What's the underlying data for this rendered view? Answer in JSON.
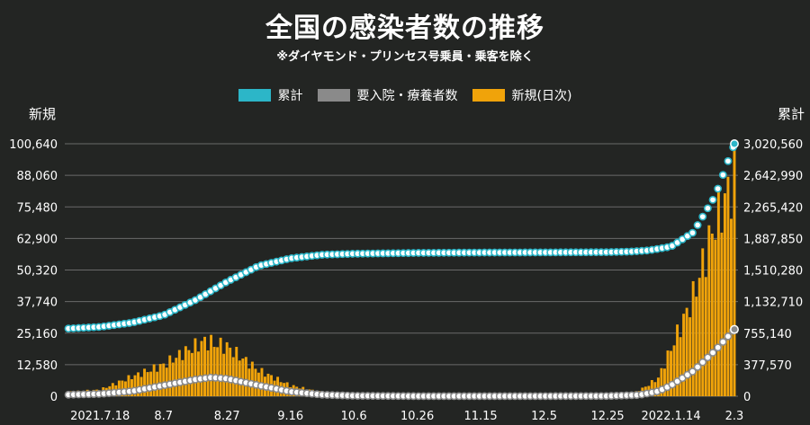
{
  "title": "全国の感染者数の推移",
  "subtitle": "※ダイヤモンド・プリンセス号乗員・乗客を除く",
  "colors": {
    "background": "#232523",
    "cumulative": "#2cb6c8",
    "recuperating": "#8a8a8a",
    "new": "#f0a30a",
    "grid": "#6a6a6a"
  },
  "chart_data": {
    "type": "bar",
    "x_labels": [
      "2021.7.18",
      "8.7",
      "8.27",
      "9.16",
      "10.6",
      "10.26",
      "11.15",
      "12.5",
      "12.25",
      "2022.1.14",
      "2.3"
    ],
    "x_range": [
      "2021-7-8",
      "2022-2-3"
    ],
    "left_axis": {
      "label": "新規",
      "ticks": [
        "0",
        "12,580",
        "25,160",
        "37,740",
        "50,320",
        "62,900",
        "75,480",
        "88,060",
        "100,640"
      ],
      "range": [
        0,
        100640
      ]
    },
    "right_axis": {
      "label": "累計",
      "ticks": [
        "0",
        "377,570",
        "755,140",
        "1,132,710",
        "1,510,280",
        "1,887,850",
        "2,265,420",
        "2,642,990",
        "3,020,560"
      ],
      "range": [
        0,
        3020560
      ]
    },
    "grid": true,
    "legend_position": "top",
    "series": [
      {
        "name": "累計",
        "type": "line-dots",
        "axis": "right",
        "color": "#2cb6c8",
        "points": [
          [
            "2021-7-8",
            810000
          ],
          [
            "2021-7-18",
            830000
          ],
          [
            "2021-7-28",
            880000
          ],
          [
            "2021-8-7",
            970000
          ],
          [
            "2021-8-17",
            1150000
          ],
          [
            "2021-8-27",
            1370000
          ],
          [
            "2021-9-6",
            1560000
          ],
          [
            "2021-9-16",
            1650000
          ],
          [
            "2021-9-26",
            1693000
          ],
          [
            "2021-10-6",
            1705000
          ],
          [
            "2021-10-26",
            1715000
          ],
          [
            "2021-11-15",
            1719000
          ],
          [
            "2021-12-5",
            1721000
          ],
          [
            "2021-12-25",
            1724000
          ],
          [
            "2022-1-1",
            1730000
          ],
          [
            "2022-1-7",
            1745000
          ],
          [
            "2022-1-14",
            1790000
          ],
          [
            "2022-1-21",
            1960000
          ],
          [
            "2022-1-28",
            2400000
          ],
          [
            "2022-2-3",
            3020560
          ]
        ]
      },
      {
        "name": "要入院・療養者数",
        "type": "line-dots",
        "axis": "right",
        "color": "#8a8a8a",
        "points": [
          [
            "2021-7-8",
            18000
          ],
          [
            "2021-7-18",
            28000
          ],
          [
            "2021-7-28",
            60000
          ],
          [
            "2021-8-7",
            130000
          ],
          [
            "2021-8-17",
            200000
          ],
          [
            "2021-8-22",
            225000
          ],
          [
            "2021-8-27",
            210000
          ],
          [
            "2021-9-6",
            130000
          ],
          [
            "2021-9-16",
            55000
          ],
          [
            "2021-9-26",
            18000
          ],
          [
            "2021-10-6",
            6000
          ],
          [
            "2021-10-26",
            1500
          ],
          [
            "2021-11-15",
            1200
          ],
          [
            "2021-12-5",
            1500
          ],
          [
            "2021-12-25",
            3000
          ],
          [
            "2022-1-4",
            15000
          ],
          [
            "2022-1-10",
            60000
          ],
          [
            "2022-1-14",
            130000
          ],
          [
            "2022-1-21",
            300000
          ],
          [
            "2022-1-28",
            550000
          ],
          [
            "2022-2-3",
            800000
          ]
        ]
      },
      {
        "name": "新規(日次)",
        "type": "bar",
        "axis": "left",
        "color": "#f0a30a",
        "points": [
          [
            "2021-7-8",
            2000
          ],
          [
            "2021-7-18",
            3000
          ],
          [
            "2021-7-28",
            9000
          ],
          [
            "2021-8-7",
            14500
          ],
          [
            "2021-8-13",
            20000
          ],
          [
            "2021-8-20",
            25500
          ],
          [
            "2021-8-27",
            23000
          ],
          [
            "2021-9-6",
            12000
          ],
          [
            "2021-9-16",
            5000
          ],
          [
            "2021-9-26",
            1800
          ],
          [
            "2021-10-6",
            600
          ],
          [
            "2021-10-26",
            300
          ],
          [
            "2021-11-15",
            150
          ],
          [
            "2021-12-5",
            120
          ],
          [
            "2021-12-25",
            400
          ],
          [
            "2022-1-1",
            500
          ],
          [
            "2022-1-6",
            4400
          ],
          [
            "2022-1-10",
            8500
          ],
          [
            "2022-1-14",
            22000
          ],
          [
            "2022-1-21",
            46000
          ],
          [
            "2022-1-28",
            81000
          ],
          [
            "2022-2-3",
            100640
          ]
        ]
      }
    ]
  }
}
